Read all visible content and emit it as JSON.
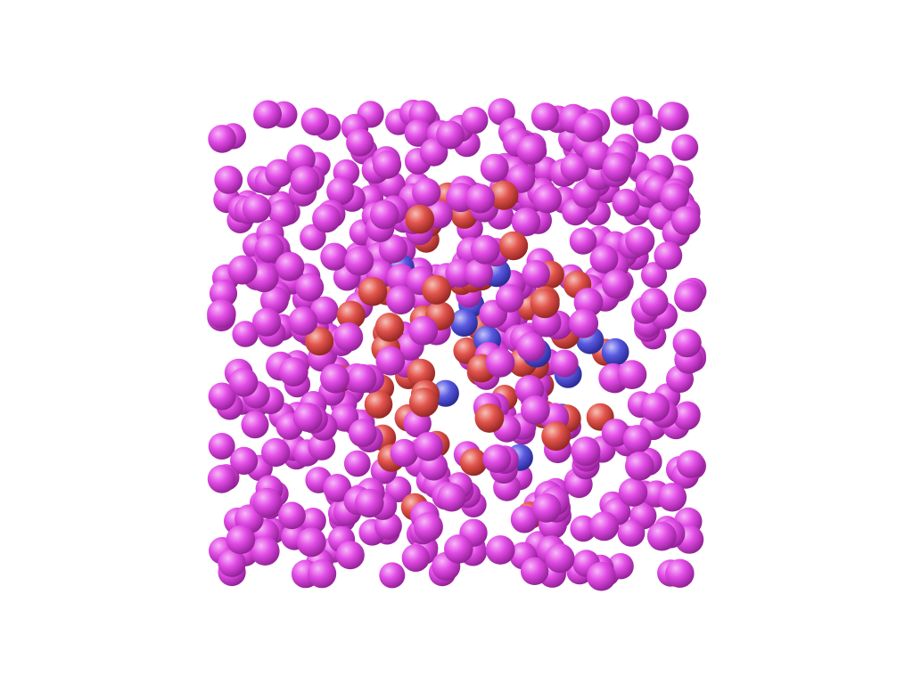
{
  "scene": {
    "background": "#ffffff",
    "particle_types": [
      {
        "name": "type-a",
        "color": "#e24ce6",
        "highlight": "#f7b8f8",
        "shade": "#8f1f93"
      },
      {
        "name": "type-b",
        "color": "#e2544c",
        "highlight": "#f7c0b8",
        "shade": "#8f2420"
      },
      {
        "name": "type-c",
        "color": "#5a5ae2",
        "highlight": "#c4c4f8",
        "shade": "#262690"
      }
    ],
    "fraction_type_b": 0.13,
    "fraction_type_c": 0.05
  }
}
